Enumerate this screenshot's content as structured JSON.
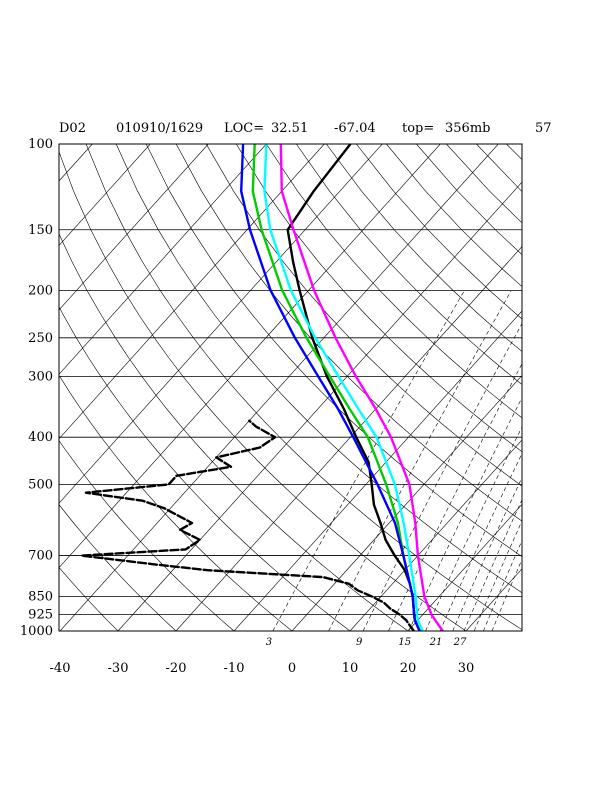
{
  "header": {
    "model": "D02",
    "datetime": "010910/1629",
    "loc_label": "LOC=",
    "lat": "32.51",
    "lon": "-67.04",
    "top_label": "top=",
    "top_value": "356mb",
    "extra": "57"
  },
  "chart_data": {
    "type": "skew-t",
    "title": "",
    "xlabel": "",
    "ylabel": "",
    "pressure_ticks": [
      100,
      150,
      200,
      250,
      300,
      400,
      500,
      700,
      850,
      925,
      1000
    ],
    "temperature_ticks": [
      -40,
      -30,
      -20,
      -10,
      0,
      10,
      20,
      30
    ],
    "mixing_ratio_labels": [
      "3",
      "9",
      "15",
      "21",
      "27"
    ],
    "xlim": [
      -40,
      40
    ],
    "ylim": [
      1000,
      100
    ],
    "grid": true,
    "series": [
      {
        "color": "#000000",
        "style": "solid",
        "points": [
          [
            1000,
            22.0
          ],
          [
            950,
            19.5
          ],
          [
            925,
            18.5
          ],
          [
            850,
            15.5
          ],
          [
            800,
            13.0
          ],
          [
            750,
            10.0
          ],
          [
            700,
            6.0
          ],
          [
            650,
            2.0
          ],
          [
            600,
            -1.5
          ],
          [
            550,
            -5.5
          ],
          [
            500,
            -9.0
          ],
          [
            450,
            -13.0
          ],
          [
            400,
            -19.0
          ],
          [
            350,
            -25.5
          ],
          [
            300,
            -33.5
          ],
          [
            250,
            -42.0
          ],
          [
            200,
            -51.5
          ],
          [
            175,
            -57.0
          ],
          [
            150,
            -63.0
          ],
          [
            125,
            -64.5
          ],
          [
            100,
            -65.5
          ]
        ]
      },
      {
        "color": "#000000",
        "style": "dashed",
        "points": [
          [
            1000,
            21.0
          ],
          [
            975,
            19.5
          ],
          [
            950,
            18.0
          ],
          [
            925,
            16.0
          ],
          [
            900,
            13.5
          ],
          [
            875,
            11.5
          ],
          [
            850,
            8.5
          ],
          [
            825,
            5.0
          ],
          [
            800,
            2.5
          ],
          [
            775,
            -3.0
          ],
          [
            750,
            -24.0
          ],
          [
            730,
            -34.0
          ],
          [
            700,
            -48.0
          ],
          [
            680,
            -31.0
          ],
          [
            650,
            -30.0
          ],
          [
            620,
            -35.0
          ],
          [
            600,
            -34.0
          ],
          [
            560,
            -41.0
          ],
          [
            540,
            -46.0
          ],
          [
            520,
            -57.0
          ],
          [
            500,
            -44.0
          ],
          [
            480,
            -44.0
          ],
          [
            460,
            -36.0
          ],
          [
            440,
            -40.0
          ],
          [
            420,
            -34.0
          ],
          [
            400,
            -33.0
          ],
          [
            380,
            -38.0
          ],
          [
            370,
            -40.0
          ]
        ]
      },
      {
        "color": "#ff00ff",
        "style": "solid",
        "points": [
          [
            1000,
            26.0
          ],
          [
            950,
            23.0
          ],
          [
            925,
            21.5
          ],
          [
            850,
            17.5
          ],
          [
            700,
            10.0
          ],
          [
            600,
            4.5
          ],
          [
            500,
            -2.5
          ],
          [
            400,
            -13.0
          ],
          [
            350,
            -20.0
          ],
          [
            300,
            -28.5
          ],
          [
            250,
            -38.0
          ],
          [
            200,
            -49.0
          ],
          [
            150,
            -62.0
          ],
          [
            125,
            -70.0
          ],
          [
            100,
            -77.5
          ]
        ]
      },
      {
        "color": "#00ffff",
        "style": "solid",
        "points": [
          [
            1000,
            22.5
          ],
          [
            950,
            20.0
          ],
          [
            925,
            19.0
          ],
          [
            850,
            16.0
          ],
          [
            700,
            8.5
          ],
          [
            600,
            2.5
          ],
          [
            500,
            -5.0
          ],
          [
            400,
            -15.5
          ],
          [
            350,
            -23.0
          ],
          [
            300,
            -31.5
          ],
          [
            250,
            -41.5
          ],
          [
            200,
            -53.0
          ],
          [
            150,
            -66.0
          ],
          [
            125,
            -73.0
          ],
          [
            100,
            -80.0
          ]
        ]
      },
      {
        "color": "#00cc00",
        "style": "solid",
        "points": [
          [
            1000,
            22.0
          ],
          [
            950,
            19.5
          ],
          [
            925,
            18.5
          ],
          [
            850,
            15.5
          ],
          [
            700,
            7.5
          ],
          [
            600,
            1.5
          ],
          [
            500,
            -6.5
          ],
          [
            400,
            -17.0
          ],
          [
            350,
            -24.5
          ],
          [
            300,
            -33.0
          ],
          [
            250,
            -43.0
          ],
          [
            200,
            -54.5
          ],
          [
            150,
            -67.5
          ],
          [
            125,
            -75.0
          ],
          [
            100,
            -82.0
          ]
        ]
      },
      {
        "color": "#0000ff",
        "style": "solid",
        "points": [
          [
            1000,
            22.0
          ],
          [
            950,
            19.5
          ],
          [
            925,
            18.5
          ],
          [
            850,
            15.5
          ],
          [
            700,
            7.5
          ],
          [
            600,
            1.0
          ],
          [
            500,
            -8.0
          ],
          [
            400,
            -19.5
          ],
          [
            350,
            -26.5
          ],
          [
            300,
            -35.0
          ],
          [
            250,
            -45.0
          ],
          [
            200,
            -56.5
          ],
          [
            150,
            -69.5
          ],
          [
            125,
            -77.0
          ],
          [
            100,
            -84.0
          ]
        ]
      }
    ]
  }
}
